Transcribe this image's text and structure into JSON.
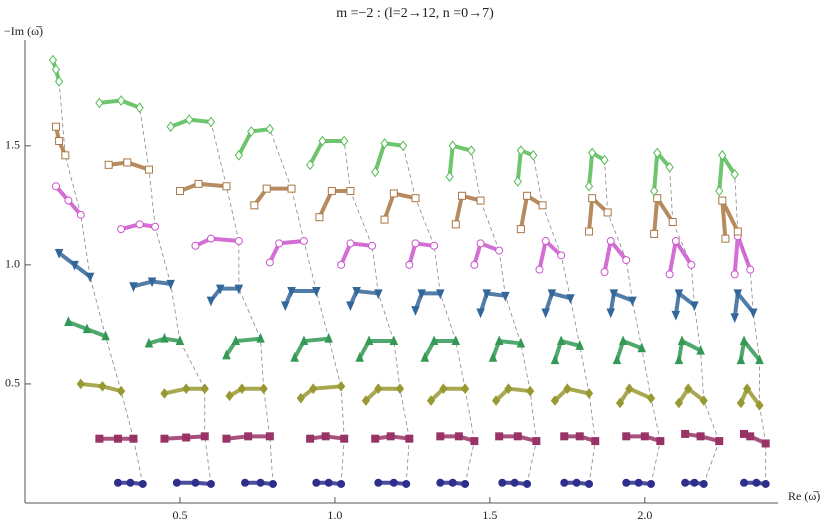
{
  "chart_data": {
    "type": "scatter",
    "title": "m =−2 : (l=2→12, n =0→7)",
    "x_label": "Re (ω̅)",
    "y_label": "−Im (ω̅)",
    "xlim": [
      0,
      2.42
    ],
    "ylim": [
      0,
      1.94
    ],
    "xticks": [
      0.5,
      {
        "value": 1,
        "label": "1.0"
      },
      1.5,
      {
        "value": 2,
        "label": "2.0"
      }
    ],
    "yticks": [
      0.5,
      {
        "value": 1,
        "label": "1.0"
      },
      1.5
    ],
    "guide_lines": true,
    "series": [
      {
        "color": "#2e2e8c",
        "marker": "circle",
        "filled": true,
        "x": [
          0.3,
          0.34,
          0.38,
          null,
          0.49,
          0.55,
          0.6,
          null,
          0.71,
          0.76,
          0.8,
          null,
          0.94,
          0.98,
          1.02,
          null,
          1.14,
          1.19,
          1.23,
          null,
          1.34,
          1.38,
          1.42,
          null,
          1.54,
          1.58,
          1.62,
          null,
          1.74,
          1.78,
          1.82,
          null,
          1.94,
          1.98,
          2.02,
          null,
          2.13,
          2.16,
          2.19,
          null,
          2.32,
          2.36,
          2.39
        ],
        "values": [
          0.085,
          0.085,
          0.08,
          null,
          0.085,
          0.085,
          0.08,
          null,
          0.085,
          0.085,
          0.08,
          null,
          0.085,
          0.085,
          0.08,
          null,
          0.085,
          0.085,
          0.08,
          null,
          0.085,
          0.085,
          0.08,
          null,
          0.085,
          0.085,
          0.08,
          null,
          0.085,
          0.085,
          0.08,
          null,
          0.085,
          0.085,
          0.08,
          null,
          0.085,
          0.085,
          0.08,
          null,
          0.085,
          0.085,
          0.08
        ]
      },
      {
        "color": "#993366",
        "marker": "square",
        "filled": true,
        "x": [
          0.24,
          0.3,
          0.35,
          null,
          0.45,
          0.52,
          0.58,
          null,
          0.65,
          0.72,
          0.79,
          null,
          0.92,
          0.97,
          1.03,
          null,
          1.13,
          1.18,
          1.24,
          null,
          1.34,
          1.4,
          1.45,
          null,
          1.53,
          1.59,
          1.65,
          null,
          1.74,
          1.79,
          1.84,
          null,
          1.94,
          2.0,
          2.05,
          null,
          2.13,
          2.18,
          2.24,
          null,
          2.32,
          2.34,
          2.39
        ],
        "values": [
          0.27,
          0.27,
          0.27,
          null,
          0.27,
          0.275,
          0.28,
          null,
          0.27,
          0.28,
          0.28,
          null,
          0.27,
          0.28,
          0.27,
          null,
          0.27,
          0.28,
          0.27,
          null,
          0.28,
          0.28,
          0.26,
          null,
          0.28,
          0.28,
          0.26,
          null,
          0.28,
          0.28,
          0.26,
          null,
          0.28,
          0.28,
          0.26,
          null,
          0.29,
          0.28,
          0.26,
          null,
          0.29,
          0.28,
          0.25
        ]
      },
      {
        "color": "#999933",
        "marker": "diamond",
        "filled": true,
        "x": [
          0.18,
          0.25,
          0.31,
          null,
          0.45,
          0.52,
          0.58,
          null,
          0.66,
          0.7,
          0.77,
          null,
          0.89,
          0.93,
          1.02,
          null,
          1.1,
          1.14,
          1.21,
          null,
          1.31,
          1.35,
          1.42,
          null,
          1.52,
          1.56,
          1.63,
          null,
          1.71,
          1.75,
          1.82,
          null,
          1.92,
          1.95,
          2.02,
          null,
          2.11,
          2.14,
          2.19,
          null,
          2.31,
          2.33,
          2.37
        ],
        "values": [
          0.5,
          0.49,
          0.47,
          null,
          0.46,
          0.48,
          0.48,
          null,
          0.45,
          0.48,
          0.48,
          null,
          0.44,
          0.48,
          0.49,
          null,
          0.43,
          0.48,
          0.48,
          null,
          0.43,
          0.48,
          0.48,
          null,
          0.43,
          0.48,
          0.47,
          null,
          0.43,
          0.48,
          0.46,
          null,
          0.42,
          0.48,
          0.44,
          null,
          0.42,
          0.48,
          0.43,
          null,
          0.42,
          0.48,
          0.41
        ]
      },
      {
        "color": "#339955",
        "marker": "triangle-up",
        "filled": true,
        "x": [
          0.14,
          0.2,
          0.26,
          null,
          0.4,
          0.45,
          0.5,
          null,
          0.65,
          0.68,
          0.76,
          null,
          0.87,
          0.9,
          0.98,
          null,
          1.08,
          1.11,
          1.19,
          null,
          1.29,
          1.32,
          1.39,
          null,
          1.51,
          1.53,
          1.6,
          null,
          1.71,
          1.73,
          1.79,
          null,
          1.91,
          1.93,
          1.99,
          null,
          2.11,
          2.12,
          2.18,
          null,
          2.31,
          2.32,
          2.37
        ],
        "values": [
          0.76,
          0.73,
          0.7,
          null,
          0.67,
          0.69,
          0.68,
          null,
          0.62,
          0.68,
          0.69,
          null,
          0.61,
          0.68,
          0.69,
          null,
          0.61,
          0.68,
          0.68,
          null,
          0.61,
          0.68,
          0.68,
          null,
          0.61,
          0.68,
          0.67,
          null,
          0.6,
          0.68,
          0.66,
          null,
          0.6,
          0.68,
          0.65,
          null,
          0.6,
          0.68,
          0.64,
          null,
          0.6,
          0.68,
          0.6
        ]
      },
      {
        "color": "#336699",
        "marker": "triangle-down",
        "filled": true,
        "x": [
          0.11,
          0.16,
          0.21,
          null,
          0.35,
          0.41,
          0.47,
          null,
          0.6,
          0.63,
          0.69,
          null,
          0.84,
          0.86,
          0.94,
          null,
          1.05,
          1.07,
          1.14,
          null,
          1.26,
          1.28,
          1.34,
          null,
          1.47,
          1.49,
          1.55,
          null,
          1.68,
          1.7,
          1.76,
          null,
          1.89,
          1.9,
          1.96,
          null,
          2.1,
          2.11,
          2.16,
          null,
          2.29,
          2.3,
          2.35
        ],
        "values": [
          1.05,
          1.0,
          0.95,
          null,
          0.91,
          0.93,
          0.92,
          null,
          0.85,
          0.9,
          0.9,
          null,
          0.83,
          0.89,
          0.89,
          null,
          0.83,
          0.89,
          0.88,
          null,
          0.81,
          0.88,
          0.88,
          null,
          0.8,
          0.88,
          0.87,
          null,
          0.8,
          0.88,
          0.86,
          null,
          0.8,
          0.88,
          0.85,
          null,
          0.79,
          0.88,
          0.83,
          null,
          0.78,
          0.88,
          0.8
        ]
      },
      {
        "color": "#cc55cc",
        "marker": "circle",
        "filled": false,
        "x": [
          0.1,
          0.14,
          0.18,
          null,
          0.31,
          0.37,
          0.42,
          null,
          0.55,
          0.6,
          0.69,
          null,
          0.79,
          0.82,
          0.9,
          null,
          1.02,
          1.05,
          1.12,
          null,
          1.24,
          1.26,
          1.32,
          null,
          1.45,
          1.47,
          1.53,
          null,
          1.66,
          1.68,
          1.73,
          null,
          1.87,
          1.89,
          1.94,
          null,
          2.08,
          2.1,
          2.15,
          null,
          2.29,
          2.3,
          2.34
        ],
        "values": [
          1.33,
          1.27,
          1.21,
          null,
          1.15,
          1.17,
          1.16,
          null,
          1.08,
          1.11,
          1.1,
          null,
          1.01,
          1.09,
          1.1,
          null,
          1.0,
          1.09,
          1.08,
          null,
          1.0,
          1.09,
          1.08,
          null,
          1.0,
          1.09,
          1.06,
          null,
          0.98,
          1.1,
          1.04,
          null,
          0.97,
          1.1,
          1.02,
          null,
          0.96,
          1.1,
          1.0,
          null,
          0.96,
          1.12,
          0.98
        ]
      },
      {
        "color": "#aa7744",
        "marker": "square",
        "filled": false,
        "x": [
          0.1,
          0.11,
          0.13,
          null,
          0.27,
          0.33,
          0.4,
          null,
          0.5,
          0.56,
          0.65,
          null,
          0.74,
          0.78,
          0.86,
          null,
          0.95,
          0.99,
          1.05,
          null,
          1.16,
          1.19,
          1.26,
          null,
          1.39,
          1.41,
          1.47,
          null,
          1.6,
          1.62,
          1.67,
          null,
          1.82,
          1.83,
          1.88,
          null,
          2.03,
          2.04,
          2.09,
          null,
          2.26,
          2.25,
          2.3
        ],
        "values": [
          1.58,
          1.52,
          1.46,
          null,
          1.42,
          1.43,
          1.4,
          null,
          1.31,
          1.34,
          1.33,
          null,
          1.25,
          1.32,
          1.32,
          null,
          1.2,
          1.31,
          1.31,
          null,
          1.19,
          1.3,
          1.28,
          null,
          1.17,
          1.29,
          1.27,
          null,
          1.15,
          1.29,
          1.25,
          null,
          1.14,
          1.28,
          1.22,
          null,
          1.13,
          1.28,
          1.18,
          null,
          1.11,
          1.27,
          1.14
        ]
      },
      {
        "color": "#55bb55",
        "marker": "diamond",
        "filled": false,
        "x": [
          0.09,
          0.1,
          0.11,
          null,
          0.24,
          0.31,
          0.37,
          null,
          0.47,
          0.53,
          0.6,
          null,
          0.69,
          0.73,
          0.79,
          null,
          0.92,
          0.96,
          1.03,
          null,
          1.13,
          1.16,
          1.22,
          null,
          1.37,
          1.38,
          1.44,
          null,
          1.59,
          1.6,
          1.64,
          null,
          1.82,
          1.83,
          1.87,
          null,
          2.03,
          2.04,
          2.08,
          null,
          2.24,
          2.25,
          2.29
        ],
        "values": [
          1.86,
          1.82,
          1.77,
          null,
          1.68,
          1.69,
          1.66,
          null,
          1.58,
          1.61,
          1.6,
          null,
          1.46,
          1.56,
          1.57,
          null,
          1.42,
          1.52,
          1.52,
          null,
          1.39,
          1.51,
          1.5,
          null,
          1.37,
          1.5,
          1.48,
          null,
          1.35,
          1.48,
          1.46,
          null,
          1.33,
          1.47,
          1.44,
          null,
          1.31,
          1.47,
          1.41,
          null,
          1.31,
          1.46,
          1.38
        ]
      }
    ]
  }
}
